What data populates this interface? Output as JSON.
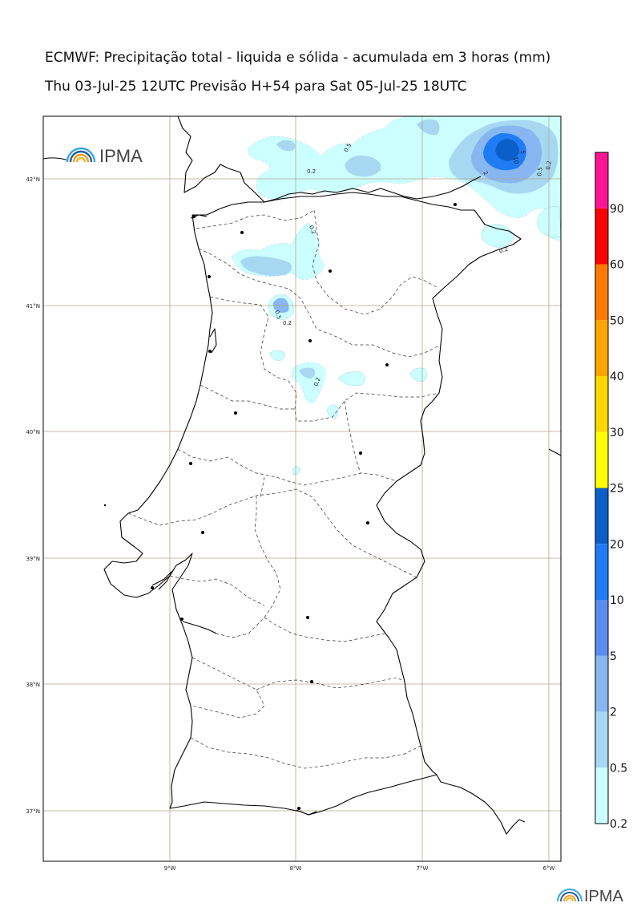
{
  "title_line1": "ECMWF: Precipitação total - liquida e sólida - acumulada em 3 horas (mm)",
  "title_line2": "Thu 03-Jul-25 12UTC Previsão H+54 para Sat 05-Jul-25 18UTC",
  "logo_text": "IPMA",
  "logo_icon": "ipma-rainbow-logo-icon",
  "lat_labels": [
    "42°N",
    "41°N",
    "40°N",
    "39°N",
    "38°N",
    "37°N"
  ],
  "lon_labels": [
    "9°W",
    "8°W",
    "7°W",
    "6°W"
  ],
  "colorbar": {
    "levels": [
      "0.2",
      "0.5",
      "2",
      "5",
      "10",
      "20",
      "25",
      "30",
      "40",
      "50",
      "60",
      "90"
    ],
    "colors": [
      "#ccffff",
      "#a6d8f2",
      "#87b6f0",
      "#5b8df0",
      "#1f7cf5",
      "#0b5fc8",
      "#ffff00",
      "#ffd700",
      "#ffa500",
      "#ff7a00",
      "#ff0000",
      "#ff1493"
    ]
  },
  "contour_labels": [
    "0.2",
    "0.5",
    "2",
    "5",
    "10"
  ],
  "colors": {
    "land_outline": "#000000",
    "grid": "#b5a58a",
    "district_border": "#333333"
  }
}
